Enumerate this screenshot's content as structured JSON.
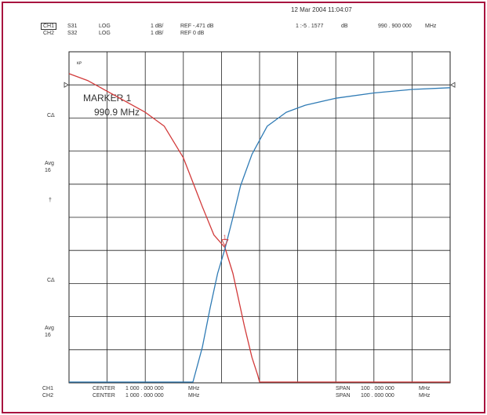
{
  "header": {
    "datetime": "12 Mar 2004  11:04:07",
    "rows": [
      {
        "channel": "CH1",
        "param": "S31",
        "format": "LOG",
        "scale": "1 dB/",
        "ref": "REF -.471 dB",
        "marker_label": "1 :-5  . 1577",
        "marker_unit": "dB",
        "marker_freq": "990  . 900  000",
        "marker_freq_unit": "MHz"
      },
      {
        "channel": "CH2",
        "param": "S32",
        "format": "LOG",
        "scale": "1 dB/",
        "ref": "REF 0 dB"
      }
    ]
  },
  "side_labels": {
    "top_ref": "ᴋᴘ",
    "c_delta_1": "CΔ",
    "avg_1": "Avg",
    "avg_1_num": "16",
    "arrow": "†",
    "c_delta_2": "CΔ",
    "avg_2": "Avg",
    "avg_2_num": "16"
  },
  "marker": {
    "title": "MARKER 1",
    "freq": "990.9 MHz",
    "number": "1"
  },
  "footer": {
    "rows": [
      {
        "channel": "CH1",
        "center_label": "CENTER",
        "center_value": "1  000  . 000   000",
        "center_unit": "MHz",
        "span_label": "SPAN",
        "span_value": "100  . 000   000",
        "span_unit": "MHz"
      },
      {
        "channel": "CH2",
        "center_label": "CENTER",
        "center_value": "1  000  . 000   000",
        "center_unit": "MHz",
        "span_label": "SPAN",
        "span_value": "100  . 000   000",
        "span_unit": "MHz"
      }
    ]
  },
  "chart_data": {
    "type": "line",
    "x_range_mhz": [
      950,
      1050
    ],
    "grid": {
      "x_divisions": 10,
      "y_divisions": 10
    },
    "colors": {
      "grid": "#222222",
      "series_s31": "#d23a3a",
      "series_s32": "#2f7bb5",
      "frame": "#a8143f"
    },
    "series": [
      {
        "name": "S31",
        "x": [
          950,
          955,
          960,
          965,
          970,
          975,
          980,
          985,
          988,
          990.9,
          993,
          996,
          998,
          999.5,
          1000,
          1010,
          1020,
          1030,
          1040,
          1050
        ],
        "y": [
          -0.2,
          -0.4,
          -0.7,
          -1.0,
          -1.3,
          -1.7,
          -2.6,
          -4.0,
          -4.8,
          -5.16,
          -5.9,
          -7.4,
          -8.3,
          -8.8,
          -9.0,
          -9.0,
          -9.0,
          -9.0,
          -9.0,
          -9.0
        ]
      },
      {
        "name": "S32",
        "x": [
          950,
          970,
          980,
          982.5,
          985,
          987,
          989,
          990.9,
          993,
          995,
          998,
          1002,
          1007,
          1012,
          1020,
          1030,
          1040,
          1050
        ],
        "y": [
          -9.0,
          -9.0,
          -9.0,
          -9.0,
          -8.0,
          -6.9,
          -5.9,
          -5.2,
          -4.3,
          -3.4,
          -2.5,
          -1.7,
          -1.3,
          -1.1,
          -0.9,
          -0.75,
          -0.65,
          -0.6
        ]
      }
    ]
  }
}
